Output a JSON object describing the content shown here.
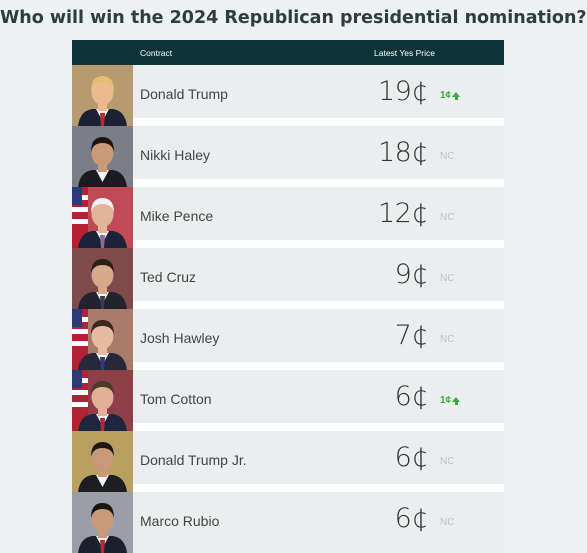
{
  "title": "Who will win the 2024 Republican presidential nomination?",
  "table": {
    "col_contract": "Contract",
    "col_price": "Latest Yes Price"
  },
  "colors": {
    "header_bg": "#0e3438",
    "up": "#3aa843",
    "nc": "#b8c0c0"
  },
  "rows": [
    {
      "name": "Donald Trump",
      "price": "19¢",
      "change": "1¢",
      "trend": "up",
      "bg": "#b79a6e",
      "hair": "#e0c070",
      "skin": "#efb98f",
      "suit": "#1c2235",
      "tie": "#c0282e",
      "flag": false
    },
    {
      "name": "Nikki Haley",
      "price": "18¢",
      "change": "NC",
      "trend": "nc",
      "bg": "#7b7e86",
      "hair": "#1d140f",
      "skin": "#c89a78",
      "suit": "#1c1c20",
      "tie": "",
      "flag": false
    },
    {
      "name": "Mike Pence",
      "price": "12¢",
      "change": "NC",
      "trend": "nc",
      "bg": "#c04a55",
      "hair": "#f2f2f2",
      "skin": "#e2b59a",
      "suit": "#1c2237",
      "tie": "#8a6aa0",
      "flag": true
    },
    {
      "name": "Ted Cruz",
      "price": "9¢",
      "change": "NC",
      "trend": "nc",
      "bg": "#7f4a4a",
      "hair": "#2a1f1a",
      "skin": "#d8a88a",
      "suit": "#22232c",
      "tie": "#3b3a58",
      "flag": false
    },
    {
      "name": "Josh Hawley",
      "price": "7¢",
      "change": "NC",
      "trend": "nc",
      "bg": "#aa7a6a",
      "hair": "#3a2a20",
      "skin": "#e6bba0",
      "suit": "#27293a",
      "tie": "#2f3b7a",
      "flag": true
    },
    {
      "name": "Tom Cotton",
      "price": "6¢",
      "change": "1¢",
      "trend": "up",
      "bg": "#8e3f48",
      "hair": "#4a3a2a",
      "skin": "#e0b196",
      "suit": "#1f2740",
      "tie": "#b02a35",
      "flag": true
    },
    {
      "name": "Donald Trump Jr.",
      "price": "6¢",
      "change": "NC",
      "trend": "nc",
      "bg": "#b8a060",
      "hair": "#1e1612",
      "skin": "#c89878",
      "suit": "#1d1d22",
      "tie": "",
      "flag": false
    },
    {
      "name": "Marco Rubio",
      "price": "6¢",
      "change": "NC",
      "trend": "nc",
      "bg": "#9b9ea8",
      "hair": "#1a1410",
      "skin": "#c9997a",
      "suit": "#1c1f2c",
      "tie": "#b8283a",
      "flag": false
    }
  ]
}
